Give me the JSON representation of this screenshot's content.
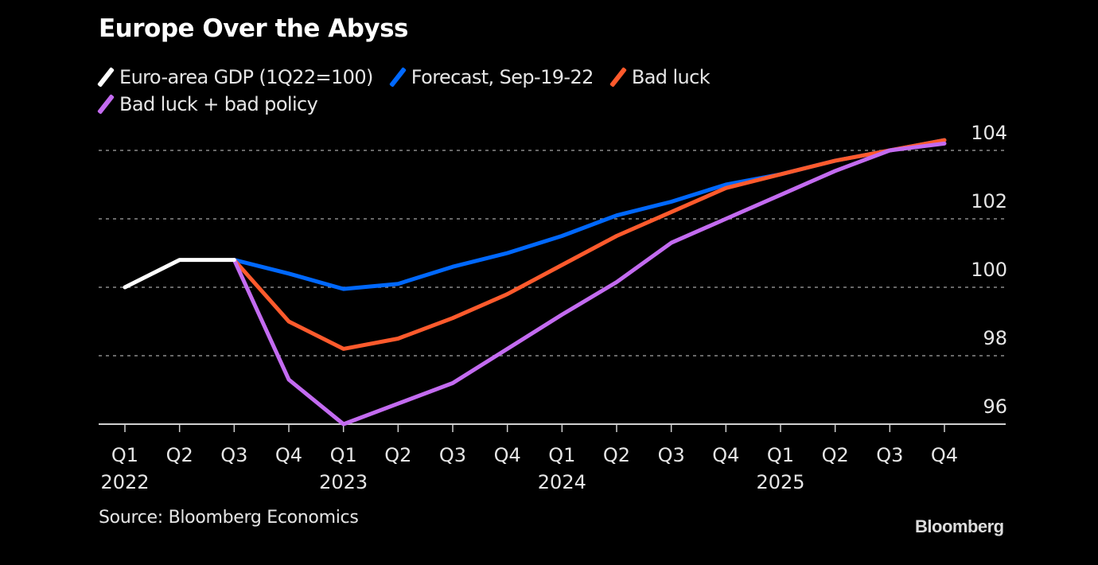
{
  "title": "Europe Over the Abyss",
  "legend": [
    {
      "label": "Euro-area GDP (1Q22=100)",
      "color": "#ffffff"
    },
    {
      "label": "Forecast, Sep-19-22",
      "color": "#0068ff"
    },
    {
      "label": "Bad luck",
      "color": "#ff5a2c"
    },
    {
      "label": "Bad luck + bad policy",
      "color": "#c36bf0"
    }
  ],
  "source": "Source: Bloomberg Economics",
  "logo": "Bloomberg",
  "chart_data": {
    "type": "line",
    "title": "Europe Over the Abyss",
    "xlabel": "",
    "ylabel": "",
    "ylim": [
      96,
      104.6
    ],
    "yticks": [
      96,
      98,
      100,
      102,
      104
    ],
    "y_axis_side": "right",
    "grid": "horizontal dotted",
    "legend_position": "top-left",
    "x": [
      "Q1 2022",
      "Q2 2022",
      "Q3 2022",
      "Q4 2022",
      "Q1 2023",
      "Q2 2023",
      "Q3 2023",
      "Q4 2023",
      "Q1 2024",
      "Q2 2024",
      "Q3 2024",
      "Q4 2024",
      "Q1 2025",
      "Q2 2025",
      "Q3 2025",
      "Q4 2025"
    ],
    "xtick_quarters": [
      "Q1",
      "Q2",
      "Q3",
      "Q4",
      "Q1",
      "Q2",
      "Q3",
      "Q4",
      "Q1",
      "Q2",
      "Q3",
      "Q4",
      "Q1",
      "Q2",
      "Q3",
      "Q4"
    ],
    "xtick_years": [
      "2022",
      "",
      "",
      "",
      "2023",
      "",
      "",
      "",
      "2024",
      "",
      "",
      "",
      "2025",
      "",
      "",
      ""
    ],
    "series": [
      {
        "name": "Euro-area GDP (1Q22=100)",
        "color": "#ffffff",
        "values": [
          100.0,
          100.8,
          100.8,
          null,
          null,
          null,
          null,
          null,
          null,
          null,
          null,
          null,
          null,
          null,
          null,
          null
        ]
      },
      {
        "name": "Forecast, Sep-19-22",
        "color": "#0068ff",
        "values": [
          null,
          null,
          100.8,
          100.4,
          99.95,
          100.1,
          100.6,
          101.0,
          101.5,
          102.1,
          102.5,
          103.0,
          103.3,
          103.7,
          104.0,
          104.3
        ]
      },
      {
        "name": "Bad luck",
        "color": "#ff5a2c",
        "values": [
          null,
          null,
          100.8,
          99.0,
          98.2,
          98.5,
          99.1,
          99.8,
          100.65,
          101.5,
          102.2,
          102.9,
          103.3,
          103.7,
          104.0,
          104.3
        ]
      },
      {
        "name": "Bad luck + bad policy",
        "color": "#c36bf0",
        "values": [
          null,
          null,
          100.8,
          97.3,
          96.0,
          96.6,
          97.2,
          98.2,
          99.2,
          100.15,
          101.3,
          102.0,
          102.7,
          103.4,
          104.0,
          104.2
        ]
      }
    ]
  }
}
